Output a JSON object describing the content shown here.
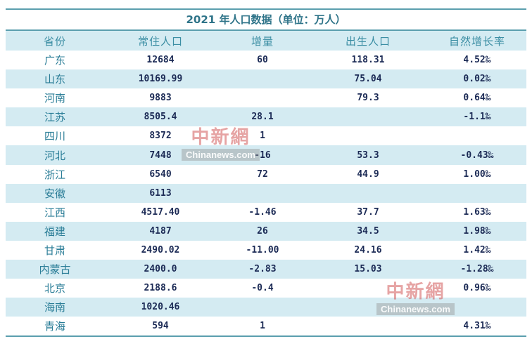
{
  "title": "2021 年人口数据（单位：万人）",
  "headers": [
    "省份",
    "常住人口",
    "增量",
    "出生人口",
    "自然增长率"
  ],
  "rows": [
    [
      "广东",
      "12684",
      "60",
      "118.31",
      "4.52‰"
    ],
    [
      "山东",
      "10169.99",
      "",
      "75.04",
      "0.02‰"
    ],
    [
      "河南",
      "9883",
      "",
      "79.3",
      "0.64‰"
    ],
    [
      "江苏",
      "8505.4",
      "28.1",
      "",
      "-1.1‰"
    ],
    [
      "四川",
      "8372",
      "1",
      "",
      ""
    ],
    [
      "河北",
      "7448",
      "-16",
      "53.3",
      "-0.43‰"
    ],
    [
      "浙江",
      "6540",
      "72",
      "44.9",
      "1.00‰"
    ],
    [
      "安徽",
      "6113",
      "",
      "",
      ""
    ],
    [
      "江西",
      "4517.40",
      "-1.46",
      "37.7",
      "1.63‰"
    ],
    [
      "福建",
      "4187",
      "26",
      "34.5",
      "1.98‰"
    ],
    [
      "甘肃",
      "2490.02",
      "-11.00",
      "24.16",
      "1.42‰"
    ],
    [
      "内蒙古",
      "2400.0",
      "-2.83",
      "15.03",
      "-1.28‰"
    ],
    [
      "北京",
      "2188.6",
      "-0.4",
      "",
      "0.96‰"
    ],
    [
      "海南",
      "1020.46",
      "",
      "",
      ""
    ],
    [
      "青海",
      "594",
      "1",
      "",
      "4.31‰"
    ]
  ],
  "watermark": {
    "logo": "中新網",
    "url": "Chinanews.com"
  },
  "colors": {
    "border": "#5b9fae",
    "header_bg": "#d4ebf2",
    "header_text": "#3a8da3",
    "data_text": "#1b2a55"
  }
}
